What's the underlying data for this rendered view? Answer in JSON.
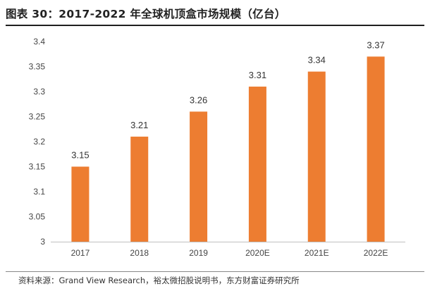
{
  "header": {
    "title": "图表 30：2017-2022 年全球机顶盒市场规模（亿台）"
  },
  "chart_data": {
    "type": "bar",
    "title": "图表 30：2017-2022 年全球机顶盒市场规模（亿台）",
    "xlabel": "",
    "ylabel": "",
    "categories": [
      "2017",
      "2018",
      "2019",
      "2020E",
      "2021E",
      "2022E"
    ],
    "values": [
      3.15,
      3.21,
      3.26,
      3.31,
      3.34,
      3.37
    ],
    "value_labels": [
      "3.15",
      "3.21",
      "3.26",
      "3.31",
      "3.34",
      "3.37"
    ],
    "ylim": [
      3.0,
      3.4
    ],
    "yticks": [
      3.0,
      3.05,
      3.1,
      3.15,
      3.2,
      3.25,
      3.3,
      3.35,
      3.4
    ],
    "ytick_labels": [
      "3",
      "3.05",
      "3.1",
      "3.15",
      "3.2",
      "3.25",
      "3.3",
      "3.35",
      "3.4"
    ],
    "bar_color": "#ED7D31",
    "grid": false,
    "legend": "none"
  },
  "footer": {
    "source": "资料来源：Grand View Research，裕太微招股说明书，东方财富证券研究所"
  }
}
